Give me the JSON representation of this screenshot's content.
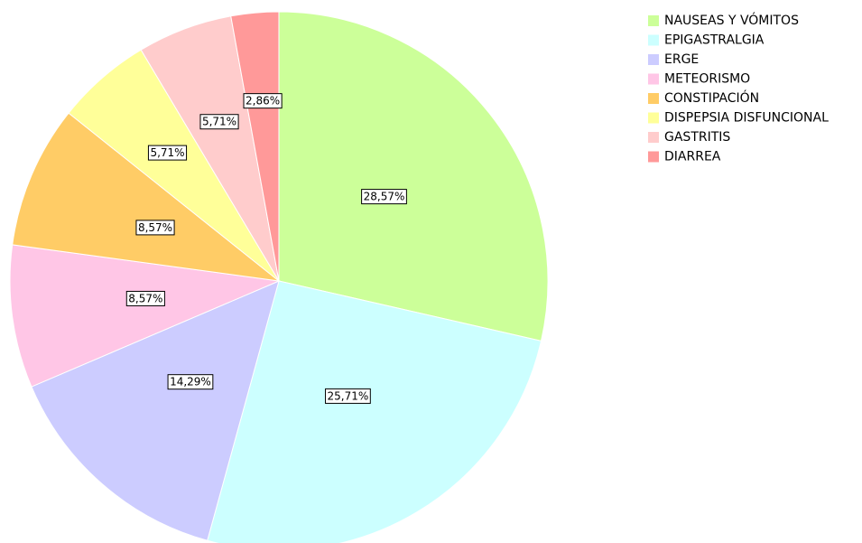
{
  "chart_data": {
    "type": "pie",
    "categories": [
      "NAUSEAS Y VÓMITOS",
      "EPIGASTRALGIA",
      "ERGE",
      "METEORISMO",
      "CONSTIPACIÓN",
      "DISPEPSIA DISFUNCIONAL",
      "GASTRITIS",
      "DIARREA"
    ],
    "values": [
      28.57,
      25.71,
      14.29,
      8.57,
      8.57,
      5.71,
      5.71,
      2.86
    ],
    "value_labels": [
      "28,57%",
      "25,71%",
      "14,29%",
      "8,57%",
      "8,57%",
      "5,71%",
      "5,71%",
      "2,86%"
    ],
    "colors": [
      "#ccff99",
      "#ccffff",
      "#ccccff",
      "#ffc6e6",
      "#ffcc66",
      "#ffff99",
      "#ffcccc",
      "#ff9999"
    ],
    "legend": "top-right"
  }
}
